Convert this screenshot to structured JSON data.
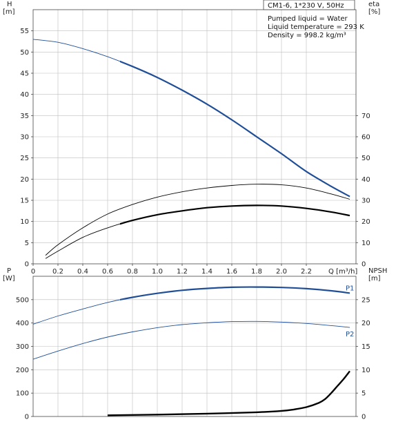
{
  "title": "CM1-6, 1*230 V, 50Hz",
  "info": [
    "Pumped liquid = Water",
    "Liquid temperature = 293 K",
    "Density = 998.2 kg/m³"
  ],
  "colors": {
    "head": "#1f4e96",
    "power": "#1f4e96",
    "eta": "#000000",
    "npsh": "#000000",
    "grid": "#bdbdbd"
  },
  "chart_data": [
    {
      "type": "line",
      "panel": "top",
      "xlabel": "Q [m³/h]",
      "xlim": [
        0,
        2.6
      ],
      "x_ticks": [
        0,
        0.2,
        0.4,
        0.6,
        0.8,
        1.0,
        1.2,
        1.4,
        1.6,
        1.8,
        2.0,
        2.2
      ],
      "y_left": {
        "label": [
          "H",
          "[m]"
        ],
        "ylim": [
          0,
          60
        ],
        "ticks": [
          0,
          5,
          10,
          15,
          20,
          25,
          30,
          35,
          40,
          45,
          50,
          55
        ]
      },
      "y_right": {
        "label": [
          "eta",
          "[%]"
        ],
        "ylim": [
          0,
          120
        ],
        "ticks": [
          0,
          10,
          20,
          30,
          40,
          50,
          60,
          70
        ]
      },
      "series": [
        {
          "axis": "left",
          "color": "#1f4e96",
          "style": "thin-then-thick",
          "x": [
            0,
            0.2,
            0.4,
            0.6,
            0.8,
            1.0,
            1.2,
            1.4,
            1.6,
            1.8,
            2.0,
            2.2,
            2.4,
            2.55
          ],
          "y": [
            53.0,
            52.3,
            50.8,
            48.9,
            46.6,
            44.0,
            41.0,
            37.7,
            34.0,
            30.0,
            26.0,
            21.8,
            18.3,
            15.9
          ]
        },
        {
          "axis": "right",
          "color": "#000000",
          "style": "thin",
          "x": [
            0.1,
            0.2,
            0.4,
            0.6,
            0.8,
            1.0,
            1.2,
            1.4,
            1.6,
            1.8,
            2.0,
            2.2,
            2.4,
            2.55
          ],
          "y": [
            4,
            9,
            17,
            23.5,
            28,
            31.5,
            34,
            35.8,
            37,
            37.6,
            37.3,
            35.8,
            33,
            30.5
          ]
        },
        {
          "axis": "right",
          "color": "#000000",
          "style": "thin-then-thick",
          "x": [
            0.1,
            0.2,
            0.4,
            0.6,
            0.8,
            1.0,
            1.2,
            1.4,
            1.6,
            1.8,
            2.0,
            2.2,
            2.4,
            2.55
          ],
          "y": [
            2.5,
            6,
            12.5,
            17,
            20.5,
            23.2,
            25,
            26.5,
            27.3,
            27.6,
            27.3,
            26.2,
            24.5,
            22.8
          ]
        }
      ]
    },
    {
      "type": "line",
      "panel": "bottom",
      "xlim": [
        0,
        2.6
      ],
      "y_left": {
        "label": [
          "P",
          "[W]"
        ],
        "ylim": [
          0,
          600
        ],
        "ticks": [
          0,
          100,
          200,
          300,
          400,
          500
        ]
      },
      "y_right": {
        "label": [
          "NPSH",
          "[m]"
        ],
        "ylim": [
          0,
          30
        ],
        "ticks": [
          0,
          5,
          10,
          15,
          20,
          25
        ]
      },
      "series": [
        {
          "name": "P1",
          "axis": "left",
          "color": "#1f4e96",
          "style": "thin-then-thick",
          "x": [
            0,
            0.2,
            0.4,
            0.6,
            0.8,
            1.0,
            1.2,
            1.4,
            1.6,
            1.8,
            2.0,
            2.2,
            2.4,
            2.55
          ],
          "y": [
            395,
            430,
            460,
            488,
            510,
            527,
            540,
            548,
            553,
            554,
            552,
            547,
            538,
            528
          ]
        },
        {
          "name": "P2",
          "axis": "left",
          "color": "#1f4e96",
          "style": "thin",
          "x": [
            0,
            0.2,
            0.4,
            0.6,
            0.8,
            1.0,
            1.2,
            1.4,
            1.6,
            1.8,
            2.0,
            2.2,
            2.4,
            2.55
          ],
          "y": [
            245,
            280,
            312,
            340,
            362,
            380,
            393,
            401,
            406,
            407,
            404,
            398,
            389,
            381
          ]
        },
        {
          "axis": "right",
          "color": "#000000",
          "style": "thick",
          "x": [
            0.6,
            1.0,
            1.4,
            1.8,
            2.0,
            2.1,
            2.2,
            2.3,
            2.35,
            2.4,
            2.45,
            2.5,
            2.55
          ],
          "y": [
            0.25,
            0.4,
            0.6,
            0.9,
            1.2,
            1.5,
            2.0,
            2.9,
            3.7,
            5.0,
            6.5,
            8.0,
            9.7
          ]
        }
      ]
    }
  ]
}
